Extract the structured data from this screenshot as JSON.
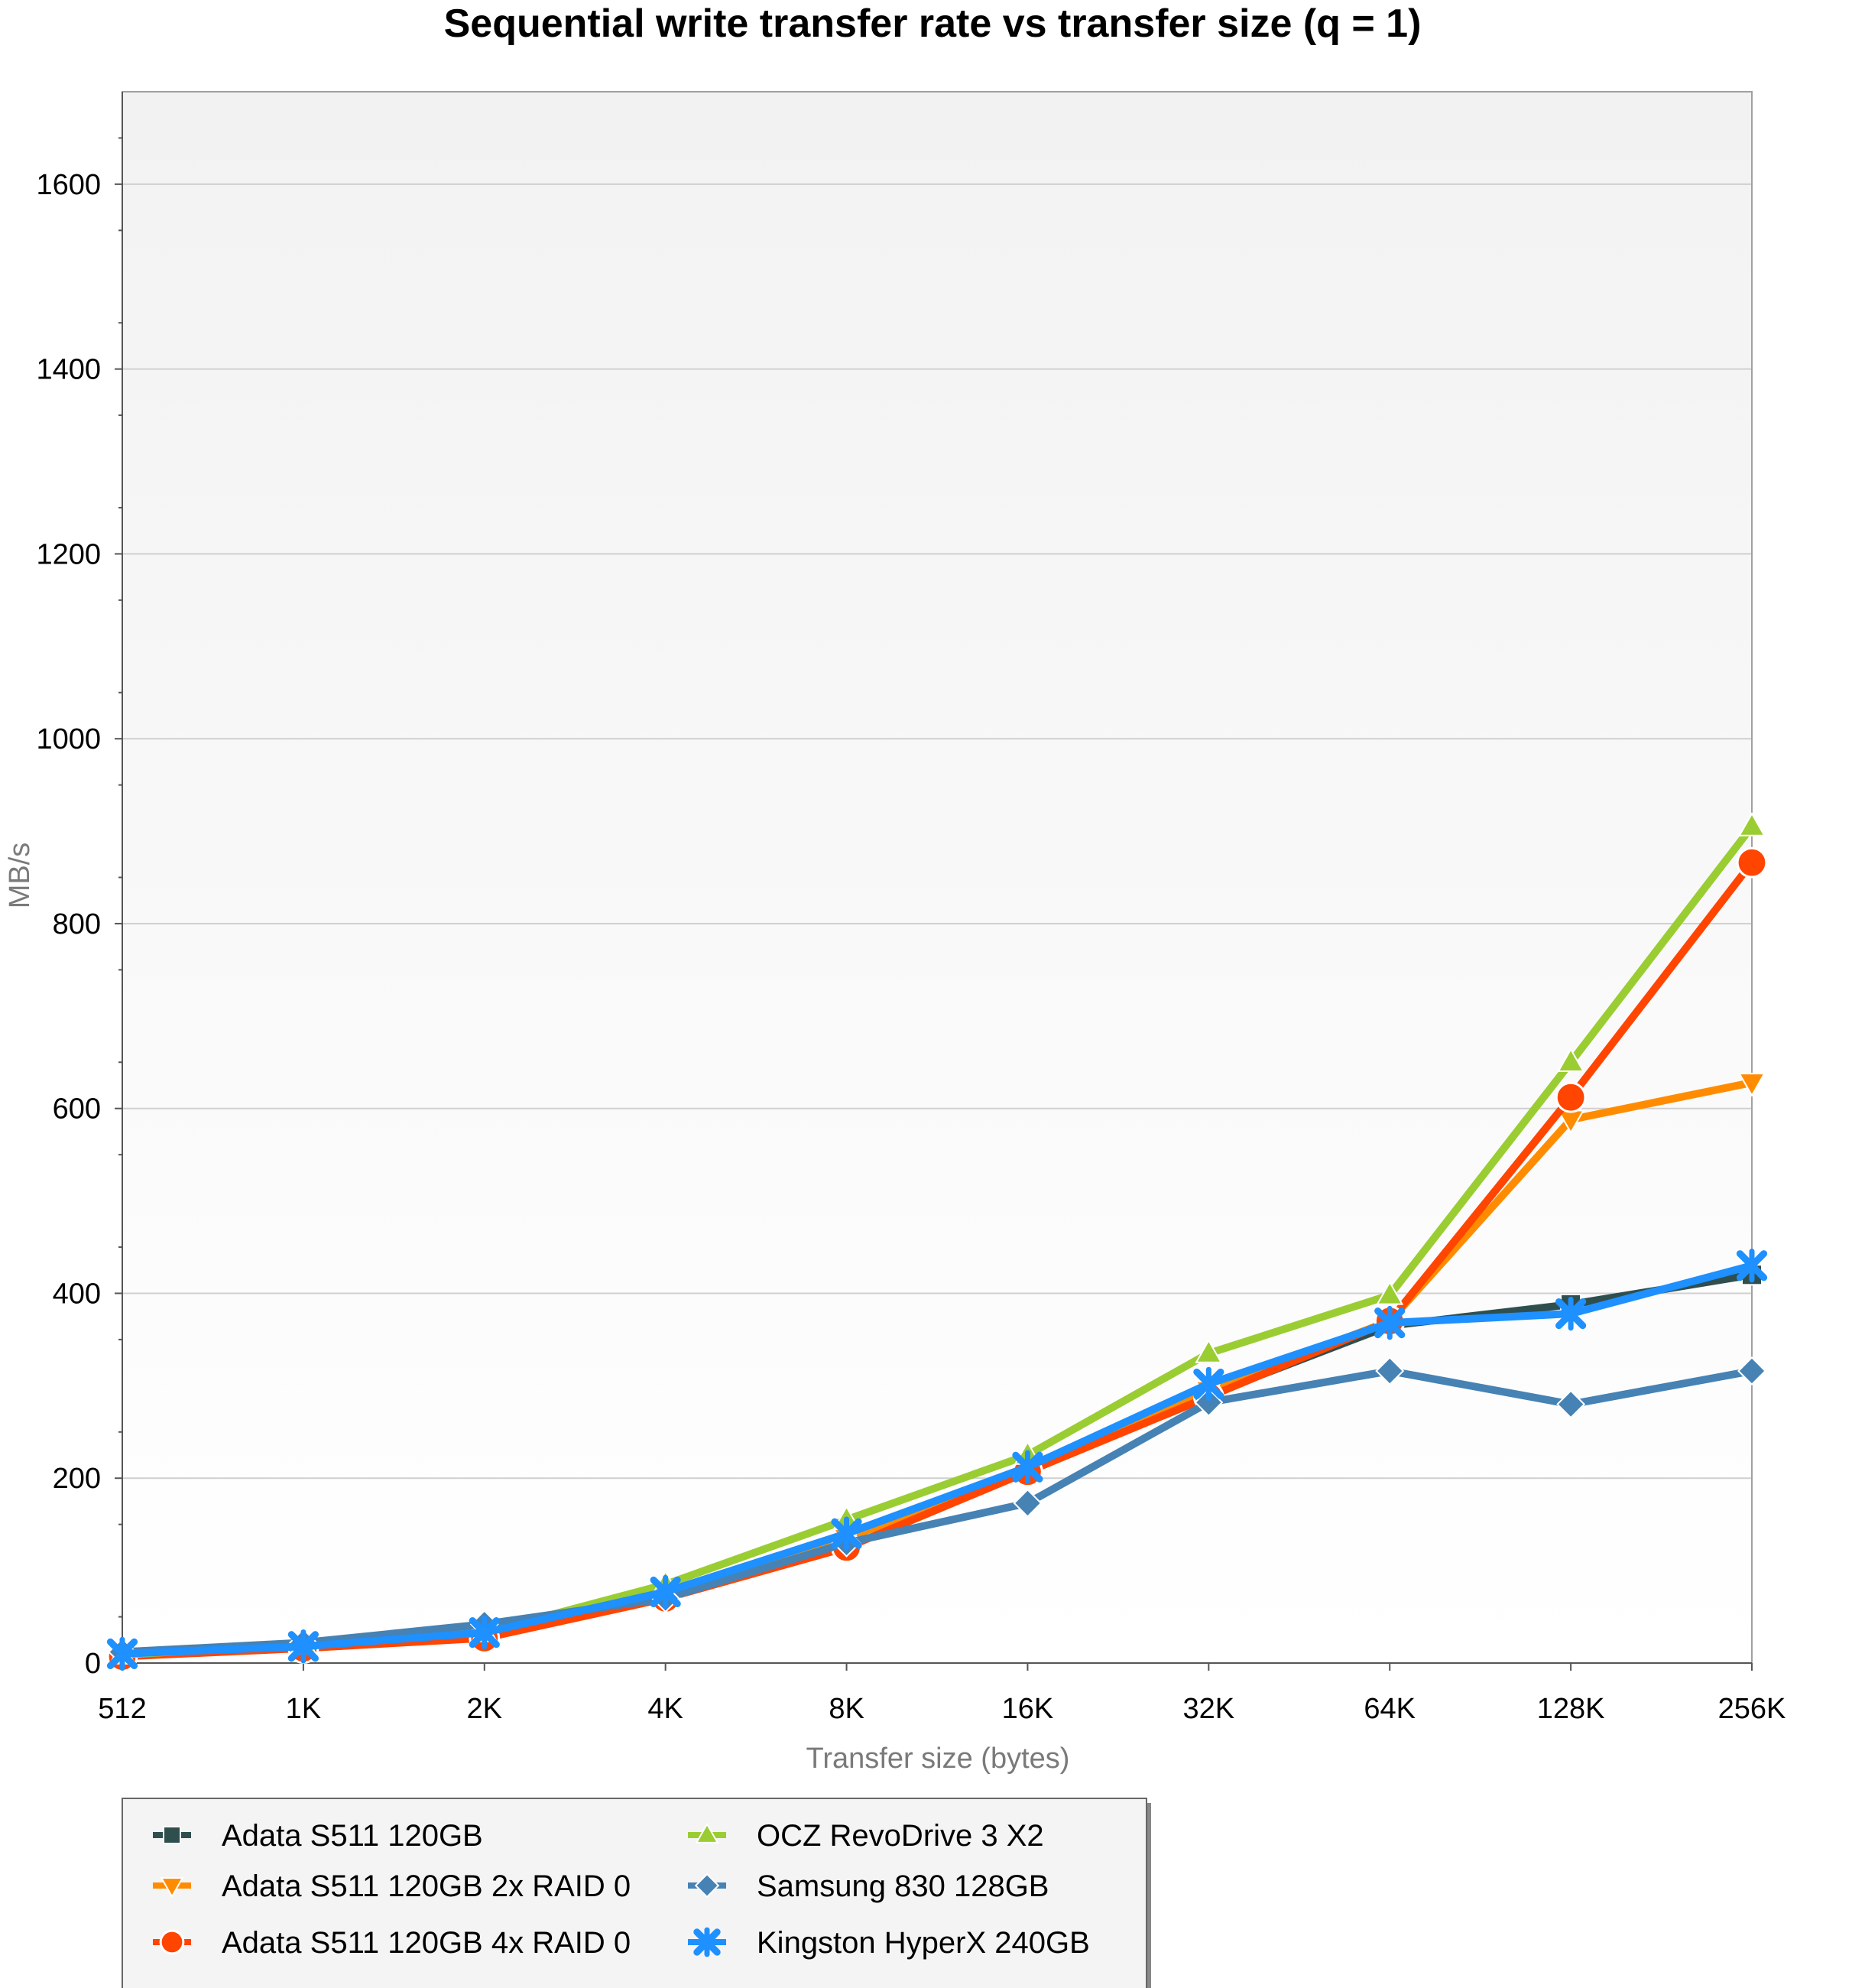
{
  "chart_data": {
    "type": "line",
    "title": "Sequential write transfer rate vs transfer size (q = 1)",
    "xlabel": "Transfer size (bytes)",
    "ylabel": "MB/s",
    "categories": [
      "512",
      "1K",
      "2K",
      "4K",
      "8K",
      "16K",
      "32K",
      "64K",
      "128K",
      "256K"
    ],
    "ylim": [
      0,
      1700
    ],
    "yticks": [
      0,
      200,
      400,
      600,
      800,
      1000,
      1200,
      1400,
      1600
    ],
    "grid": true,
    "legend_position": "bottom-left",
    "series": [
      {
        "name": "Adata S511 120GB",
        "color": "#2f4f4f",
        "marker": "square",
        "values": [
          10,
          20,
          35,
          75,
          140,
          210,
          290,
          365,
          388,
          420
        ]
      },
      {
        "name": "Adata S511 120GB 2x RAID 0",
        "color": "#ff8c00",
        "marker": "triangle-down",
        "values": [
          8,
          18,
          33,
          72,
          135,
          210,
          295,
          370,
          588,
          628
        ]
      },
      {
        "name": "Adata S511 120GB 4x RAID 0",
        "color": "#ff4500",
        "marker": "circle",
        "values": [
          7,
          16,
          27,
          70,
          125,
          207,
          288,
          370,
          612,
          866
        ]
      },
      {
        "name": "OCZ RevoDrive 3 X2",
        "color": "#9acd32",
        "marker": "triangle-up",
        "values": [
          9,
          20,
          33,
          85,
          155,
          225,
          335,
          398,
          650,
          905
        ]
      },
      {
        "name": "Samsung 830 128GB",
        "color": "#4682b4",
        "marker": "diamond",
        "values": [
          12,
          22,
          42,
          70,
          130,
          173,
          282,
          316,
          280,
          316
        ]
      },
      {
        "name": "Kingston HyperX 240GB",
        "color": "#1e90ff",
        "marker": "star",
        "values": [
          10,
          18,
          33,
          77,
          140,
          212,
          302,
          368,
          378,
          430
        ]
      }
    ]
  }
}
